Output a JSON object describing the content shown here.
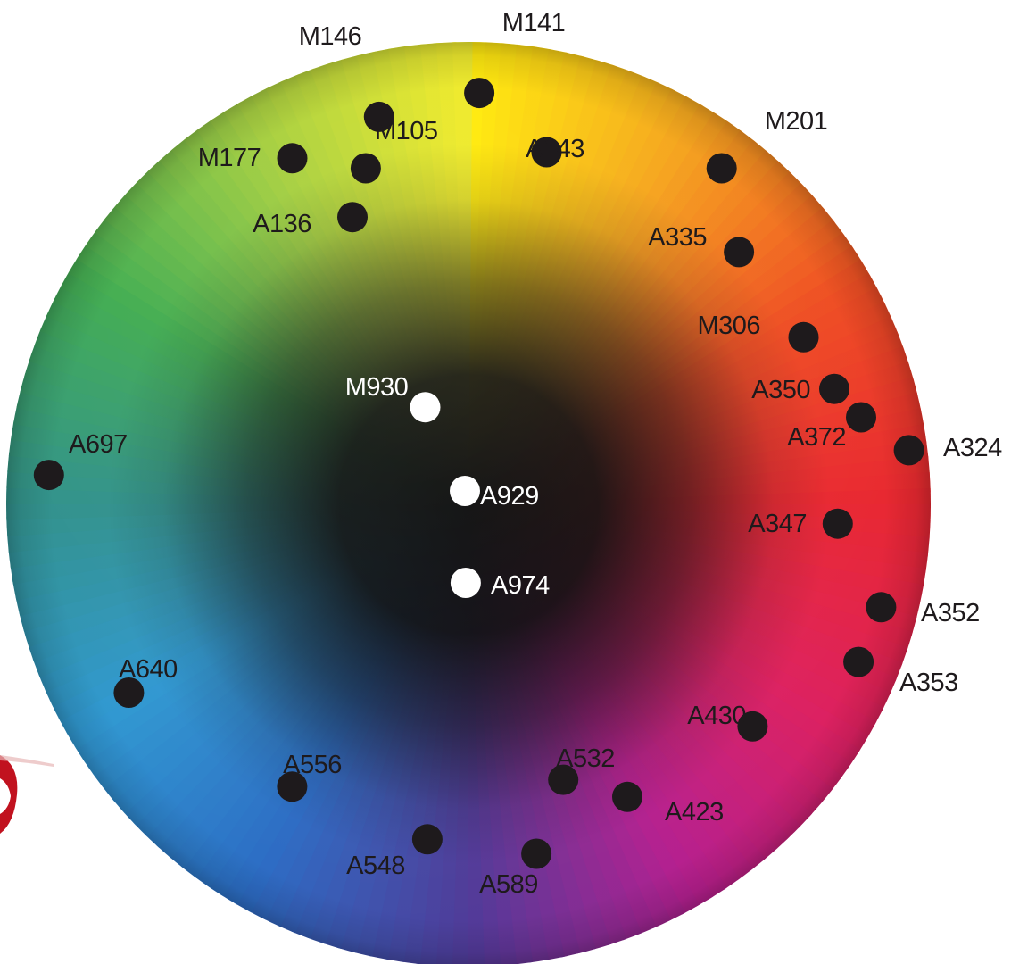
{
  "wheel": {
    "hue_stops": [
      "#ffea00",
      "#f5a215",
      "#ee4a1d",
      "#e8242e",
      "#dd1f5e",
      "#b51f8f",
      "#4f3a98",
      "#2a6cc4",
      "#2c96d0",
      "#2b8e88",
      "#39a94a",
      "#9fcc37",
      "#f0ea20"
    ],
    "center_color": "#050505",
    "rim_color": "#1c2a6e"
  },
  "markers": [
    {
      "id": "M141",
      "label": "M141",
      "color": "dark",
      "hue_deg": 1.5,
      "radius_frac": 0.89
    },
    {
      "id": "M146",
      "label": "M146",
      "color": "dark",
      "hue_deg": 347,
      "radius_frac": 0.86
    },
    {
      "id": "A143",
      "label": "A143",
      "color": "dark",
      "hue_deg": 12.5,
      "radius_frac": 0.78
    },
    {
      "id": "M105",
      "label": "M105",
      "color": "dark",
      "hue_deg": 343,
      "radius_frac": 0.76
    },
    {
      "id": "M177",
      "label": "M177",
      "color": "dark",
      "hue_deg": 333,
      "radius_frac": 0.84
    },
    {
      "id": "A136",
      "label": "A136",
      "color": "dark",
      "hue_deg": 338,
      "radius_frac": 0.67
    },
    {
      "id": "M201",
      "label": "M201",
      "color": "dark",
      "hue_deg": 37,
      "radius_frac": 0.91
    },
    {
      "id": "A335",
      "label": "A335",
      "color": "dark",
      "hue_deg": 47,
      "radius_frac": 0.8
    },
    {
      "id": "M306",
      "label": "M306",
      "color": "dark",
      "hue_deg": 63.5,
      "radius_frac": 0.81
    },
    {
      "id": "A350",
      "label": "A350",
      "color": "dark",
      "hue_deg": 72.5,
      "radius_frac": 0.83
    },
    {
      "id": "A372",
      "label": "A372",
      "color": "dark",
      "hue_deg": 77.5,
      "radius_frac": 0.87
    },
    {
      "id": "A324",
      "label": "A324",
      "color": "dark",
      "hue_deg": 83,
      "radius_frac": 0.96
    },
    {
      "id": "A347",
      "label": "A347",
      "color": "dark",
      "hue_deg": 93,
      "radius_frac": 0.8
    },
    {
      "id": "A352",
      "label": "A352",
      "color": "dark",
      "hue_deg": 104,
      "radius_frac": 0.92
    },
    {
      "id": "A353",
      "label": "A353",
      "color": "dark",
      "hue_deg": 112,
      "radius_frac": 0.91
    },
    {
      "id": "A430",
      "label": "A430",
      "color": "dark",
      "hue_deg": 128,
      "radius_frac": 0.78
    },
    {
      "id": "A423",
      "label": "A423",
      "color": "dark",
      "hue_deg": 151.5,
      "radius_frac": 0.72
    },
    {
      "id": "A532",
      "label": "A532",
      "color": "dark",
      "hue_deg": 161,
      "radius_frac": 0.63
    },
    {
      "id": "A589",
      "label": "A589",
      "color": "dark",
      "hue_deg": 169,
      "radius_frac": 0.77
    },
    {
      "id": "A548",
      "label": "A548",
      "color": "dark",
      "hue_deg": 187,
      "radius_frac": 0.73
    },
    {
      "id": "A556",
      "label": "A556",
      "color": "dark",
      "hue_deg": 212,
      "radius_frac": 0.72
    },
    {
      "id": "A640",
      "label": "A640",
      "color": "dark",
      "hue_deg": 241,
      "radius_frac": 0.84
    },
    {
      "id": "A697",
      "label": "A697",
      "color": "dark",
      "hue_deg": 274,
      "radius_frac": 0.91
    },
    {
      "id": "M930",
      "label": "M930",
      "color": "light",
      "hue_deg": 336,
      "radius_frac": 0.23
    },
    {
      "id": "A929",
      "label": "A929",
      "color": "light",
      "hue_deg": 345,
      "radius_frac": 0.03
    },
    {
      "id": "A974",
      "label": "A974",
      "color": "light",
      "hue_deg": 182,
      "radius_frac": 0.17
    }
  ]
}
